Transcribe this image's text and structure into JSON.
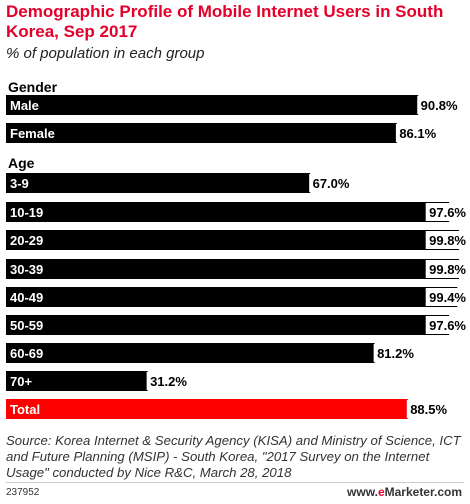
{
  "header": {
    "title": "Demographic Profile of Mobile Internet Users in South Korea, Sep 2017",
    "subtitle": "% of population in each group"
  },
  "footer": {
    "source": "Source: Korea Internet & Security Agency (KISA) and Ministry of Science, ICT and Future Planning (MSIP) - South Korea, \"2017 Survey on the Internet Usage\" conducted by Nice R&C, March 28, 2018",
    "chart_id": "237952",
    "brand_prefix": "www.",
    "brand_e": "e",
    "brand_rest": "Marketer.com"
  },
  "colors": {
    "bar": "#000000",
    "total_bar": "#ff0000",
    "title": "#e4002b"
  },
  "chart_data": {
    "type": "bar",
    "orientation": "horizontal",
    "unit": "%",
    "xlim": [
      0,
      100
    ],
    "grid": false,
    "groups": [
      {
        "label": "Gender",
        "items": [
          {
            "category": "Male",
            "value": 90.8,
            "label": "90.8%"
          },
          {
            "category": "Female",
            "value": 86.1,
            "label": "86.1%"
          }
        ]
      },
      {
        "label": "Age",
        "items": [
          {
            "category": "3-9",
            "value": 67.0,
            "label": "67.0%"
          },
          {
            "category": "10-19",
            "value": 97.6,
            "label": "97.6%"
          },
          {
            "category": "20-29",
            "value": 99.8,
            "label": "99.8%"
          },
          {
            "category": "30-39",
            "value": 99.8,
            "label": "99.8%"
          },
          {
            "category": "40-49",
            "value": 99.4,
            "label": "99.4%"
          },
          {
            "category": "50-59",
            "value": 97.6,
            "label": "97.6%"
          },
          {
            "category": "60-69",
            "value": 81.2,
            "label": "81.2%"
          },
          {
            "category": "70+",
            "value": 31.2,
            "label": "31.2%"
          }
        ]
      },
      {
        "label": "",
        "items": [
          {
            "category": "Total",
            "value": 88.5,
            "label": "88.5%",
            "highlight": true
          }
        ]
      }
    ]
  }
}
